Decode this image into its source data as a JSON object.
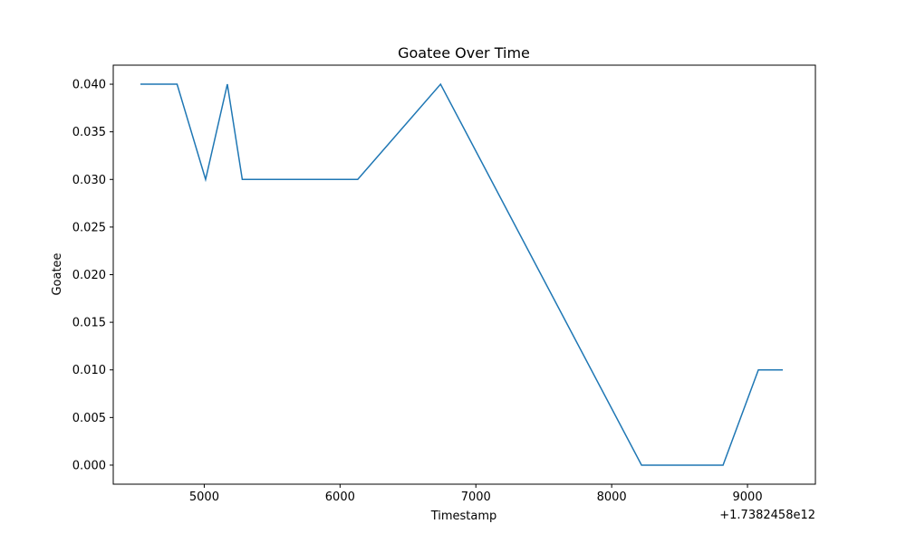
{
  "chart_data": {
    "type": "line",
    "title": "Goatee Over Time",
    "xlabel": "Timestamp",
    "ylabel": "Goatee",
    "x_offset_label": "+1.7382458e12",
    "xlim": [
      4330,
      9500
    ],
    "ylim": [
      -0.002,
      0.042
    ],
    "x_ticks": [
      5000,
      6000,
      7000,
      8000,
      9000
    ],
    "x_tick_labels": [
      "5000",
      "6000",
      "7000",
      "8000",
      "9000"
    ],
    "y_ticks": [
      0.0,
      0.005,
      0.01,
      0.015,
      0.02,
      0.025,
      0.03,
      0.035,
      0.04
    ],
    "y_tick_labels": [
      "0.000",
      "0.005",
      "0.010",
      "0.015",
      "0.020",
      "0.025",
      "0.030",
      "0.035",
      "0.040"
    ],
    "grid": false,
    "series": [
      {
        "color": "#1f77b4",
        "x": [
          4530,
          4800,
          5010,
          5170,
          5280,
          6130,
          6740,
          8220,
          8820,
          9080,
          9260
        ],
        "y": [
          0.04,
          0.04,
          0.03,
          0.04,
          0.03,
          0.03,
          0.04,
          0.0,
          0.0,
          0.01,
          0.01
        ]
      }
    ]
  }
}
